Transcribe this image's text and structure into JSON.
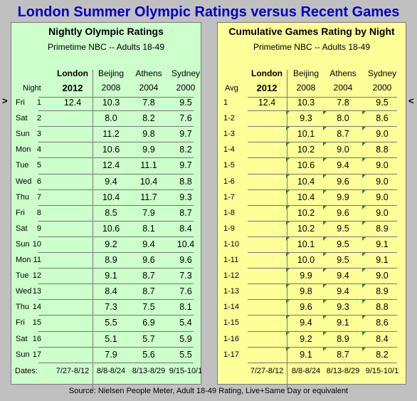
{
  "title": "London Summer Olympic Ratings versus Recent Games",
  "markers": {
    "left": ">",
    "right": "<"
  },
  "nightly": {
    "title": "Nightly Olympic Ratings",
    "subtitle": "Primetime NBC -- Adults 18-49",
    "night_label": "Night",
    "headers": [
      {
        "line1": "London",
        "line2": "2012"
      },
      {
        "line1": "Beijing",
        "line2": "2008"
      },
      {
        "line1": "Athens",
        "line2": "2004"
      },
      {
        "line1": "Sydney",
        "line2": "2000"
      }
    ],
    "dates_label": "Dates:",
    "dates": [
      "7/27-8/12",
      "8/8-8/24",
      "8/13-8/29",
      "9/15-10/1"
    ],
    "rows": [
      {
        "day": "Fri",
        "num": "1",
        "values": [
          "12.4",
          "10.3",
          "7.8",
          "9.5"
        ]
      },
      {
        "day": "Sat",
        "num": "2",
        "values": [
          "",
          "8.0",
          "8.2",
          "7.6"
        ]
      },
      {
        "day": "Sun",
        "num": "3",
        "values": [
          "",
          "11.2",
          "9.8",
          "9.7"
        ]
      },
      {
        "day": "Mon",
        "num": "4",
        "values": [
          "",
          "10.6",
          "9.9",
          "8.2"
        ]
      },
      {
        "day": "Tue",
        "num": "5",
        "values": [
          "",
          "12.4",
          "11.1",
          "9.7"
        ]
      },
      {
        "day": "Wed",
        "num": "6",
        "values": [
          "",
          "9.4",
          "10.4",
          "8.8"
        ]
      },
      {
        "day": "Thu",
        "num": "7",
        "values": [
          "",
          "10.4",
          "11.7",
          "9.3"
        ]
      },
      {
        "day": "Fri",
        "num": "8",
        "values": [
          "",
          "8.5",
          "7.9",
          "8.7"
        ]
      },
      {
        "day": "Sat",
        "num": "9",
        "values": [
          "",
          "10.6",
          "8.1",
          "8.4"
        ]
      },
      {
        "day": "Sun",
        "num": "10",
        "values": [
          "",
          "9.2",
          "9.4",
          "10.4"
        ]
      },
      {
        "day": "Mon",
        "num": "11",
        "values": [
          "",
          "8.9",
          "9.6",
          "9.6"
        ]
      },
      {
        "day": "Tue",
        "num": "12",
        "values": [
          "",
          "9.1",
          "8.7",
          "7.3"
        ]
      },
      {
        "day": "Wed",
        "num": "13",
        "values": [
          "",
          "8.4",
          "8.7",
          "7.6"
        ]
      },
      {
        "day": "Thu",
        "num": "14",
        "values": [
          "",
          "7.3",
          "7.5",
          "8.1"
        ]
      },
      {
        "day": "Fri",
        "num": "15",
        "values": [
          "",
          "5.5",
          "6.9",
          "5.4"
        ]
      },
      {
        "day": "Sat",
        "num": "16",
        "values": [
          "",
          "5.1",
          "5.7",
          "5.9"
        ]
      },
      {
        "day": "Sun",
        "num": "17",
        "values": [
          "",
          "7.9",
          "5.6",
          "5.5"
        ]
      }
    ]
  },
  "cumulative": {
    "title": "Cumulative Games Rating by Night",
    "subtitle": "Primetime NBC -- Adults 18-49",
    "avg_label": "Avg",
    "headers": [
      {
        "line1": "London",
        "line2": "2012"
      },
      {
        "line1": "Beijing",
        "line2": "2008"
      },
      {
        "line1": "Athens",
        "line2": "2004"
      },
      {
        "line1": "Sydney",
        "line2": "2000"
      }
    ],
    "dates": [
      "7/27-8/12",
      "8/8-8/24",
      "8/13-8/29",
      "9/15-10/1"
    ],
    "rows": [
      {
        "label": "1",
        "values": [
          "12.4",
          "10.3",
          "7.8",
          "9.5"
        ]
      },
      {
        "label": "1-2",
        "values": [
          "",
          "9.3",
          "8.0",
          "8.6"
        ]
      },
      {
        "label": "1-3",
        "values": [
          "",
          "10.1",
          "8.7",
          "9.0"
        ]
      },
      {
        "label": "1-4",
        "values": [
          "",
          "10.2",
          "9.0",
          "8.8"
        ]
      },
      {
        "label": "1-5",
        "values": [
          "",
          "10.6",
          "9.4",
          "9.0"
        ]
      },
      {
        "label": "1-6",
        "values": [
          "",
          "10.4",
          "9.6",
          "9.0"
        ]
      },
      {
        "label": "1-7",
        "values": [
          "",
          "10.4",
          "9.9",
          "9.0"
        ]
      },
      {
        "label": "1-8",
        "values": [
          "",
          "10.2",
          "9.6",
          "9.0"
        ]
      },
      {
        "label": "1-9",
        "values": [
          "",
          "10.2",
          "9.5",
          "8.9"
        ]
      },
      {
        "label": "1-10",
        "values": [
          "",
          "10.1",
          "9.5",
          "9.1"
        ]
      },
      {
        "label": "1-11",
        "values": [
          "",
          "10.0",
          "9.5",
          "9.1"
        ]
      },
      {
        "label": "1-12",
        "values": [
          "",
          "9.9",
          "9.4",
          "9.0"
        ]
      },
      {
        "label": "1-13",
        "values": [
          "",
          "9.8",
          "9.4",
          "8.9"
        ]
      },
      {
        "label": "1-14",
        "values": [
          "",
          "9.6",
          "9.3",
          "8.8"
        ]
      },
      {
        "label": "1-15",
        "values": [
          "",
          "9.4",
          "9.1",
          "8.6"
        ]
      },
      {
        "label": "1-16",
        "values": [
          "",
          "9.2",
          "8.9",
          "8.4"
        ]
      },
      {
        "label": "1-17",
        "values": [
          "",
          "9.1",
          "8.7",
          "8.2"
        ]
      }
    ]
  },
  "source": "Source: Nielsen People Meter, Adult 18-49 Rating, Live+Same Day or equivalent",
  "colors": {
    "title": "#0000cc",
    "left_panel": "#ccffcc",
    "right_panel": "#ffff99",
    "background": "#c0c0c0",
    "flag": "#2a8a2a"
  }
}
